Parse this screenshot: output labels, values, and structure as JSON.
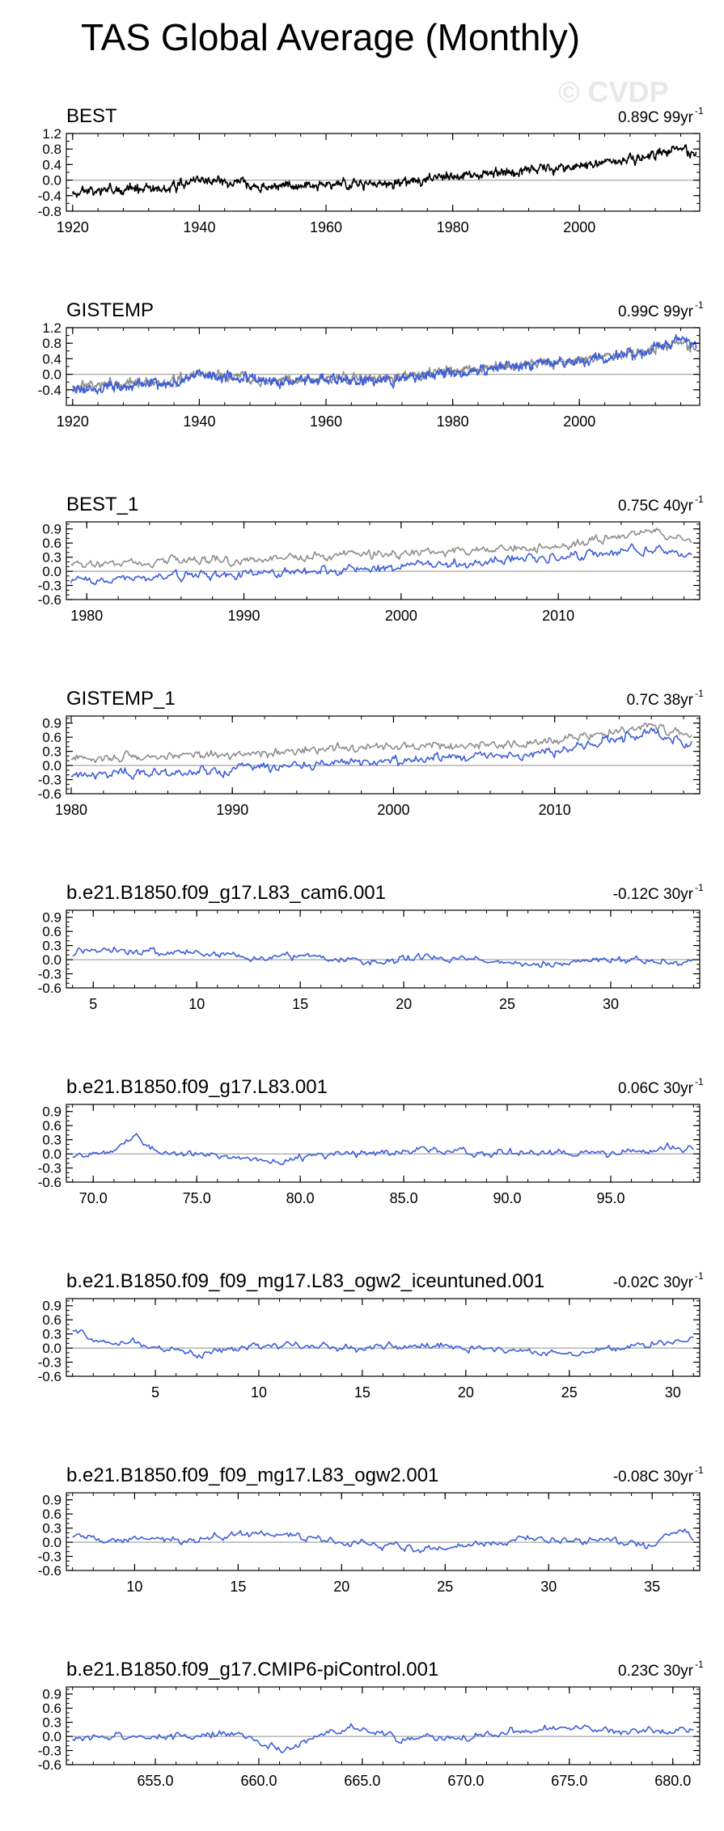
{
  "title": "TAS Global Average (Monthly)",
  "watermark": "© CVDP",
  "colors": {
    "obs": "#000000",
    "model": "#3f5fd8",
    "ref": "#8f8f8f",
    "zero": "#a6a6a6",
    "frame": "#000000"
  },
  "chart_data": [
    {
      "type": "line",
      "name": "BEST",
      "trend_label": "0.89C 99yr",
      "xlim": [
        1919,
        2019
      ],
      "ylim": [
        -0.8,
        1.2
      ],
      "yticks": [
        1.2,
        0.8,
        0.4,
        0.0,
        -0.4,
        -0.8
      ],
      "ytick_labels": [
        "1.2",
        "0.8",
        "0.4",
        "0.0",
        "-0.4",
        "-0.8"
      ],
      "y_minor": 0.2,
      "xticks": [
        1920,
        1940,
        1960,
        1980,
        2000
      ],
      "xtick_labels": [
        "1920",
        "1940",
        "1960",
        "1980",
        "2000"
      ],
      "x_minor": 4,
      "series": [
        {
          "name": "BEST",
          "role": "obs",
          "x_range": [
            1920,
            2018.5
          ],
          "n": 1188,
          "seed": 11,
          "noise": 0.1,
          "rho": 0.6,
          "knots": [
            [
              1920,
              -0.3
            ],
            [
              1935,
              -0.2
            ],
            [
              1940,
              0.0
            ],
            [
              1945,
              -0.05
            ],
            [
              1950,
              -0.15
            ],
            [
              1960,
              -0.1
            ],
            [
              1970,
              -0.1
            ],
            [
              1980,
              0.1
            ],
            [
              1990,
              0.25
            ],
            [
              2000,
              0.35
            ],
            [
              2010,
              0.55
            ],
            [
              2016,
              0.85
            ],
            [
              2018.5,
              0.65
            ]
          ]
        }
      ]
    },
    {
      "type": "line",
      "name": "GISTEMP",
      "trend_label": "0.99C 99yr",
      "xlim": [
        1919,
        2019
      ],
      "ylim": [
        -0.8,
        1.2
      ],
      "yticks": [
        1.2,
        0.8,
        0.4,
        0.0,
        -0.4
      ],
      "ytick_labels": [
        "1.2",
        "0.8",
        "0.4",
        "0.0",
        "-0.4"
      ],
      "y_minor": 0.2,
      "xticks": [
        1920,
        1940,
        1960,
        1980,
        2000
      ],
      "xtick_labels": [
        "1920",
        "1940",
        "1960",
        "1980",
        "2000"
      ],
      "x_minor": 4,
      "series": [
        {
          "name": "BEST",
          "role": "ref",
          "x_range": [
            1920,
            2018.5
          ],
          "n": 1188,
          "seed": 11,
          "noise": 0.1,
          "rho": 0.6,
          "knots": [
            [
              1920,
              -0.3
            ],
            [
              1935,
              -0.2
            ],
            [
              1940,
              0.0
            ],
            [
              1945,
              -0.05
            ],
            [
              1950,
              -0.15
            ],
            [
              1960,
              -0.1
            ],
            [
              1970,
              -0.1
            ],
            [
              1980,
              0.1
            ],
            [
              1990,
              0.25
            ],
            [
              2000,
              0.35
            ],
            [
              2010,
              0.55
            ],
            [
              2016,
              0.85
            ],
            [
              2018.5,
              0.65
            ]
          ]
        },
        {
          "name": "GISTEMP",
          "role": "model",
          "x_range": [
            1920,
            2018.5
          ],
          "n": 1188,
          "seed": 23,
          "noise": 0.11,
          "rho": 0.6,
          "knots": [
            [
              1920,
              -0.4
            ],
            [
              1935,
              -0.25
            ],
            [
              1940,
              0.0
            ],
            [
              1945,
              -0.1
            ],
            [
              1950,
              -0.2
            ],
            [
              1960,
              -0.15
            ],
            [
              1970,
              -0.15
            ],
            [
              1980,
              0.05
            ],
            [
              1990,
              0.2
            ],
            [
              2000,
              0.35
            ],
            [
              2010,
              0.55
            ],
            [
              2016,
              0.95
            ],
            [
              2018.5,
              0.7
            ]
          ]
        }
      ]
    },
    {
      "type": "line",
      "name": "BEST_1",
      "trend_label": "0.75C 40yr",
      "xlim": [
        1978.7,
        2019
      ],
      "ylim": [
        -0.6,
        1.05
      ],
      "yticks": [
        0.9,
        0.6,
        0.3,
        0.0,
        -0.3,
        -0.6
      ],
      "ytick_labels": [
        "0.9",
        "0.6",
        "0.3",
        "0.0",
        "-0.3",
        "-0.6"
      ],
      "y_minor": 0.1,
      "xticks": [
        1980,
        1990,
        2000,
        2010
      ],
      "xtick_labels": [
        "1980",
        "1990",
        "2000",
        "2010"
      ],
      "x_minor": 2,
      "series": [
        {
          "name": "BEST",
          "role": "ref",
          "x_range": [
            1979,
            2018.5
          ],
          "n": 474,
          "seed": 31,
          "noise": 0.08,
          "rho": 0.55,
          "knots": [
            [
              1979,
              0.15
            ],
            [
              1990,
              0.25
            ],
            [
              2000,
              0.4
            ],
            [
              2010,
              0.5
            ],
            [
              2016,
              0.85
            ],
            [
              2018.5,
              0.65
            ]
          ]
        },
        {
          "name": "BEST_1",
          "role": "model",
          "x_range": [
            1979,
            2018.5
          ],
          "n": 474,
          "seed": 37,
          "noise": 0.08,
          "rho": 0.55,
          "knots": [
            [
              1979,
              -0.2
            ],
            [
              1990,
              -0.05
            ],
            [
              2000,
              0.1
            ],
            [
              2010,
              0.3
            ],
            [
              2016,
              0.5
            ],
            [
              2018.5,
              0.35
            ]
          ]
        }
      ]
    },
    {
      "type": "line",
      "name": "GISTEMP_1",
      "trend_label": "0.7C 38yr",
      "xlim": [
        1979.7,
        2019
      ],
      "ylim": [
        -0.6,
        1.05
      ],
      "yticks": [
        0.9,
        0.6,
        0.3,
        0.0,
        -0.3,
        -0.6
      ],
      "ytick_labels": [
        "0.9",
        "0.6",
        "0.3",
        "0.0",
        "-0.3",
        "-0.6"
      ],
      "y_minor": 0.1,
      "xticks": [
        1980,
        1990,
        2000,
        2010
      ],
      "xtick_labels": [
        "1980",
        "1990",
        "2000",
        "2010"
      ],
      "x_minor": 2,
      "series": [
        {
          "name": "BEST",
          "role": "ref",
          "x_range": [
            1980,
            2018.5
          ],
          "n": 462,
          "seed": 41,
          "noise": 0.08,
          "rho": 0.55,
          "knots": [
            [
              1980,
              0.15
            ],
            [
              1990,
              0.25
            ],
            [
              2000,
              0.4
            ],
            [
              2010,
              0.5
            ],
            [
              2016,
              0.85
            ],
            [
              2018.5,
              0.65
            ]
          ]
        },
        {
          "name": "GISTEMP_1",
          "role": "model",
          "x_range": [
            1980,
            2018.5
          ],
          "n": 462,
          "seed": 43,
          "noise": 0.09,
          "rho": 0.55,
          "knots": [
            [
              1980,
              -0.2
            ],
            [
              1990,
              -0.1
            ],
            [
              2000,
              0.1
            ],
            [
              2010,
              0.3
            ],
            [
              2016,
              0.7
            ],
            [
              2018.5,
              0.45
            ]
          ]
        }
      ]
    },
    {
      "type": "line",
      "name": "b.e21.B1850.f09_g17.L83_cam6.001",
      "trend_label": "-0.12C 30yr",
      "xlim": [
        3.7,
        34.3
      ],
      "ylim": [
        -0.6,
        1.05
      ],
      "yticks": [
        0.9,
        0.6,
        0.3,
        0.0,
        -0.3,
        -0.6
      ],
      "ytick_labels": [
        "0.9",
        "0.6",
        "0.3",
        "0.0",
        "-0.3",
        "-0.6"
      ],
      "y_minor": 0.1,
      "xticks": [
        5,
        10,
        15,
        20,
        25,
        30
      ],
      "xtick_labels": [
        "5",
        "10",
        "15",
        "20",
        "25",
        "30"
      ],
      "x_minor": 1,
      "series": [
        {
          "name": "b.e21.B1850.f09_g17.L83_cam6.001",
          "role": "model",
          "x_range": [
            4,
            34
          ],
          "n": 360,
          "seed": 51,
          "noise": 0.07,
          "rho": 0.5,
          "knots": [
            [
              4,
              0.1
            ],
            [
              6,
              0.2
            ],
            [
              10,
              0.15
            ],
            [
              13,
              0.0
            ],
            [
              15,
              0.1
            ],
            [
              18,
              -0.05
            ],
            [
              22,
              0.05
            ],
            [
              26,
              -0.1
            ],
            [
              30,
              0.0
            ],
            [
              34,
              -0.05
            ]
          ]
        }
      ]
    },
    {
      "type": "line",
      "name": "b.e21.B1850.f09_g17.L83.001",
      "trend_label": "0.06C 30yr",
      "xlim": [
        68.7,
        99.3
      ],
      "ylim": [
        -0.6,
        1.05
      ],
      "yticks": [
        0.9,
        0.6,
        0.3,
        0.0,
        -0.3,
        -0.6
      ],
      "ytick_labels": [
        "0.9",
        "0.6",
        "0.3",
        "0.0",
        "-0.3",
        "-0.6"
      ],
      "y_minor": 0.1,
      "xticks": [
        70,
        75,
        80,
        85,
        90,
        95
      ],
      "xtick_labels": [
        "70.0",
        "75.0",
        "80.0",
        "85.0",
        "90.0",
        "95.0"
      ],
      "x_minor": 1,
      "series": [
        {
          "name": "b.e21.B1850.f09_g17.L83.001",
          "role": "model",
          "x_range": [
            69,
            99
          ],
          "n": 360,
          "seed": 61,
          "noise": 0.07,
          "rho": 0.5,
          "knots": [
            [
              69,
              -0.1
            ],
            [
              71,
              0.05
            ],
            [
              72,
              0.35
            ],
            [
              73,
              0.05
            ],
            [
              76,
              -0.05
            ],
            [
              79,
              -0.2
            ],
            [
              81,
              0.0
            ],
            [
              85,
              0.05
            ],
            [
              90,
              0.05
            ],
            [
              95,
              0.0
            ],
            [
              98,
              0.15
            ],
            [
              99,
              0.1
            ]
          ]
        }
      ]
    },
    {
      "type": "line",
      "name": "b.e21.B1850.f09_f09_mg17.L83_ogw2_iceuntuned.001",
      "trend_label": "-0.02C 30yr",
      "xlim": [
        0.7,
        31.3
      ],
      "ylim": [
        -0.6,
        1.05
      ],
      "yticks": [
        0.9,
        0.6,
        0.3,
        0.0,
        -0.3,
        -0.6
      ],
      "ytick_labels": [
        "0.9",
        "0.6",
        "0.3",
        "0.0",
        "-0.3",
        "-0.6"
      ],
      "y_minor": 0.1,
      "xticks": [
        5,
        10,
        15,
        20,
        25,
        30
      ],
      "xtick_labels": [
        "5",
        "10",
        "15",
        "20",
        "25",
        "30"
      ],
      "x_minor": 1,
      "series": [
        {
          "name": "b.e21.B1850.f09_f09_mg17.L83_ogw2_iceuntuned.001",
          "role": "model",
          "x_range": [
            1,
            31
          ],
          "n": 360,
          "seed": 71,
          "noise": 0.07,
          "rho": 0.5,
          "knots": [
            [
              1,
              0.35
            ],
            [
              2.5,
              0.15
            ],
            [
              5,
              0.05
            ],
            [
              7,
              -0.15
            ],
            [
              10,
              0.1
            ],
            [
              14,
              0.0
            ],
            [
              18,
              0.05
            ],
            [
              22,
              -0.05
            ],
            [
              25,
              -0.15
            ],
            [
              28,
              0.05
            ],
            [
              31,
              0.15
            ]
          ]
        }
      ]
    },
    {
      "type": "line",
      "name": "b.e21.B1850.f09_f09_mg17.L83_ogw2.001",
      "trend_label": "-0.08C 30yr",
      "xlim": [
        6.7,
        37.3
      ],
      "ylim": [
        -0.6,
        1.05
      ],
      "yticks": [
        0.9,
        0.6,
        0.3,
        0.0,
        -0.3,
        -0.6
      ],
      "ytick_labels": [
        "0.9",
        "0.6",
        "0.3",
        "0.0",
        "-0.3",
        "-0.6"
      ],
      "y_minor": 0.1,
      "xticks": [
        10,
        15,
        20,
        25,
        30,
        35
      ],
      "xtick_labels": [
        "10",
        "15",
        "20",
        "25",
        "30",
        "35"
      ],
      "x_minor": 1,
      "series": [
        {
          "name": "b.e21.B1850.f09_f09_mg17.L83_ogw2.001",
          "role": "model",
          "x_range": [
            7,
            37
          ],
          "n": 360,
          "seed": 81,
          "noise": 0.07,
          "rho": 0.5,
          "knots": [
            [
              7,
              0.1
            ],
            [
              10,
              0.05
            ],
            [
              13,
              0.05
            ],
            [
              16,
              0.2
            ],
            [
              18,
              0.1
            ],
            [
              21,
              0.0
            ],
            [
              24,
              -0.15
            ],
            [
              27,
              0.0
            ],
            [
              30,
              0.05
            ],
            [
              33,
              0.05
            ],
            [
              35,
              -0.1
            ],
            [
              36.3,
              0.3
            ],
            [
              37,
              0.1
            ]
          ]
        }
      ]
    },
    {
      "type": "line",
      "name": "b.e21.B1850.f09_g17.CMIP6-piControl.001",
      "trend_label": "0.23C 30yr",
      "xlim": [
        650.7,
        681.3
      ],
      "ylim": [
        -0.6,
        1.05
      ],
      "yticks": [
        0.9,
        0.6,
        0.3,
        0.0,
        -0.3,
        -0.6
      ],
      "ytick_labels": [
        "0.9",
        "0.6",
        "0.3",
        "0.0",
        "-0.3",
        "-0.6"
      ],
      "y_minor": 0.1,
      "xticks": [
        655,
        660,
        665,
        670,
        675,
        680
      ],
      "xtick_labels": [
        "655.0",
        "660.0",
        "665.0",
        "670.0",
        "675.0",
        "680.0"
      ],
      "x_minor": 1,
      "series": [
        {
          "name": "b.e21.B1850.f09_g17.CMIP6-piControl.001",
          "role": "model",
          "x_range": [
            651,
            681
          ],
          "n": 360,
          "seed": 91,
          "noise": 0.07,
          "rho": 0.5,
          "knots": [
            [
              651,
              -0.05
            ],
            [
              654,
              0.0
            ],
            [
              657,
              0.0
            ],
            [
              659,
              0.1
            ],
            [
              661,
              -0.3
            ],
            [
              663,
              0.0
            ],
            [
              664.5,
              0.2
            ],
            [
              667,
              -0.05
            ],
            [
              670,
              -0.05
            ],
            [
              672,
              0.1
            ],
            [
              675,
              0.2
            ],
            [
              678,
              0.1
            ],
            [
              681,
              0.1
            ]
          ]
        }
      ]
    }
  ]
}
